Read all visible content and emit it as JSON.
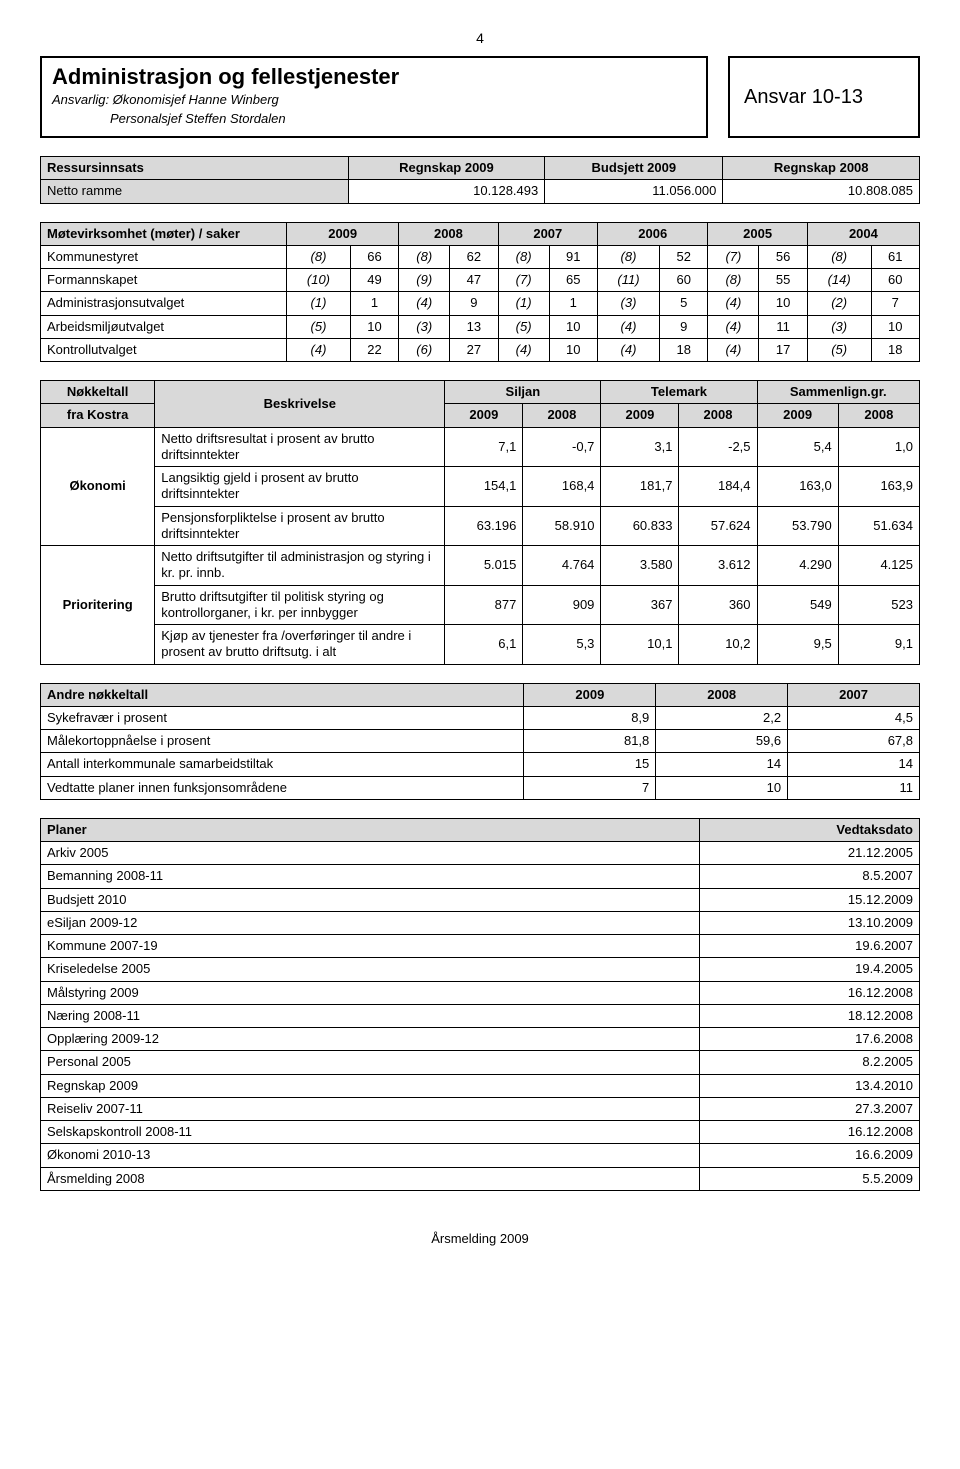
{
  "page_number": "4",
  "header": {
    "title": "Administrasjon og fellestjenester",
    "sub1": "Ansvarlig: Økonomisjef Hanne Winberg",
    "sub2": "Personalsjef Steffen Stordalen",
    "ansvar": "Ansvar 10-13"
  },
  "ressurs": {
    "headers": [
      "Ressursinnsats",
      "Regnskap 2009",
      "Budsjett 2009",
      "Regnskap 2008"
    ],
    "row_label": "Netto ramme",
    "values": [
      "10.128.493",
      "11.056.000",
      "10.808.085"
    ]
  },
  "mote": {
    "title": "Møtevirksomhet (møter) / saker",
    "years": [
      "2009",
      "2008",
      "2007",
      "2006",
      "2005",
      "2004"
    ],
    "rows": [
      {
        "label": "Kommunestyret",
        "cells": [
          "(8)",
          "66",
          "(8)",
          "62",
          "(8)",
          "91",
          "(8)",
          "52",
          "(7)",
          "56",
          "(8)",
          "61"
        ]
      },
      {
        "label": "Formannskapet",
        "cells": [
          "(10)",
          "49",
          "(9)",
          "47",
          "(7)",
          "65",
          "(11)",
          "60",
          "(8)",
          "55",
          "(14)",
          "60"
        ]
      },
      {
        "label": "Administrasjonsutvalget",
        "cells": [
          "(1)",
          "1",
          "(4)",
          "9",
          "(1)",
          "1",
          "(3)",
          "5",
          "(4)",
          "10",
          "(2)",
          "7"
        ]
      },
      {
        "label": "Arbeidsmiljøutvalget",
        "cells": [
          "(5)",
          "10",
          "(3)",
          "13",
          "(5)",
          "10",
          "(4)",
          "9",
          "(4)",
          "11",
          "(3)",
          "10"
        ]
      },
      {
        "label": "Kontrollutvalget",
        "cells": [
          "(4)",
          "22",
          "(6)",
          "27",
          "(4)",
          "10",
          "(4)",
          "18",
          "(4)",
          "17",
          "(5)",
          "18"
        ]
      }
    ]
  },
  "kostra": {
    "col1_top": "Nøkkeltall",
    "col1_bot": "fra Kostra",
    "col2": "Beskrivelse",
    "group_headers": [
      "Siljan",
      "Telemark",
      "Sammenlign.gr."
    ],
    "year_headers": [
      "2009",
      "2008",
      "2009",
      "2008",
      "2009",
      "2008"
    ],
    "groups": [
      {
        "name": "Økonomi",
        "rows": [
          {
            "desc": "Netto driftsresultat i prosent av brutto driftsinntekter",
            "vals": [
              "7,1",
              "-0,7",
              "3,1",
              "-2,5",
              "5,4",
              "1,0"
            ]
          },
          {
            "desc": "Langsiktig gjeld i prosent av brutto driftsinntekter",
            "vals": [
              "154,1",
              "168,4",
              "181,7",
              "184,4",
              "163,0",
              "163,9"
            ]
          },
          {
            "desc": "Pensjonsforpliktelse i prosent av brutto driftsinntekter",
            "vals": [
              "63.196",
              "58.910",
              "60.833",
              "57.624",
              "53.790",
              "51.634"
            ]
          }
        ]
      },
      {
        "name": "Prioritering",
        "rows": [
          {
            "desc": "Netto driftsutgifter til administrasjon og styring i kr. pr. innb.",
            "vals": [
              "5.015",
              "4.764",
              "3.580",
              "3.612",
              "4.290",
              "4.125"
            ]
          },
          {
            "desc": "Brutto driftsutgifter til politisk styring og kontrollorganer, i kr. per innbygger",
            "vals": [
              "877",
              "909",
              "367",
              "360",
              "549",
              "523"
            ]
          },
          {
            "desc": "Kjøp av tjenester fra /overføringer til andre i prosent av brutto driftsutg. i alt",
            "vals": [
              "6,1",
              "5,3",
              "10,1",
              "10,2",
              "9,5",
              "9,1"
            ]
          }
        ]
      }
    ]
  },
  "andre": {
    "headers": [
      "Andre nøkkeltall",
      "2009",
      "2008",
      "2007"
    ],
    "rows": [
      {
        "label": "Sykefravær i prosent",
        "vals": [
          "8,9",
          "2,2",
          "4,5"
        ]
      },
      {
        "label": "Målekortoppnåelse i prosent",
        "vals": [
          "81,8",
          "59,6",
          "67,8"
        ]
      },
      {
        "label": "Antall interkommunale samarbeidstiltak",
        "vals": [
          "15",
          "14",
          "14"
        ]
      },
      {
        "label": "Vedtatte planer innen funksjonsområdene",
        "vals": [
          "7",
          "10",
          "11"
        ]
      }
    ]
  },
  "planer": {
    "headers": [
      "Planer",
      "Vedtaksdato"
    ],
    "rows": [
      {
        "name": "Arkiv 2005",
        "date": "21.12.2005"
      },
      {
        "name": "Bemanning 2008-11",
        "date": "8.5.2007"
      },
      {
        "name": "Budsjett 2010",
        "date": "15.12.2009"
      },
      {
        "name": "eSiljan 2009-12",
        "date": "13.10.2009"
      },
      {
        "name": "Kommune 2007-19",
        "date": "19.6.2007"
      },
      {
        "name": "Kriseledelse 2005",
        "date": "19.4.2005"
      },
      {
        "name": "Målstyring 2009",
        "date": "16.12.2008"
      },
      {
        "name": "Næring 2008-11",
        "date": "18.12.2008"
      },
      {
        "name": "Opplæring 2009-12",
        "date": "17.6.2008"
      },
      {
        "name": "Personal 2005",
        "date": "8.2.2005"
      },
      {
        "name": "Regnskap 2009",
        "date": "13.4.2010"
      },
      {
        "name": "Reiseliv 2007-11",
        "date": "27.3.2007"
      },
      {
        "name": "Selskapskontroll 2008-11",
        "date": "16.12.2008"
      },
      {
        "name": "Økonomi 2010-13",
        "date": "16.6.2009"
      },
      {
        "name": "Årsmelding 2008",
        "date": "5.5.2009"
      }
    ]
  },
  "footer": "Årsmelding 2009"
}
